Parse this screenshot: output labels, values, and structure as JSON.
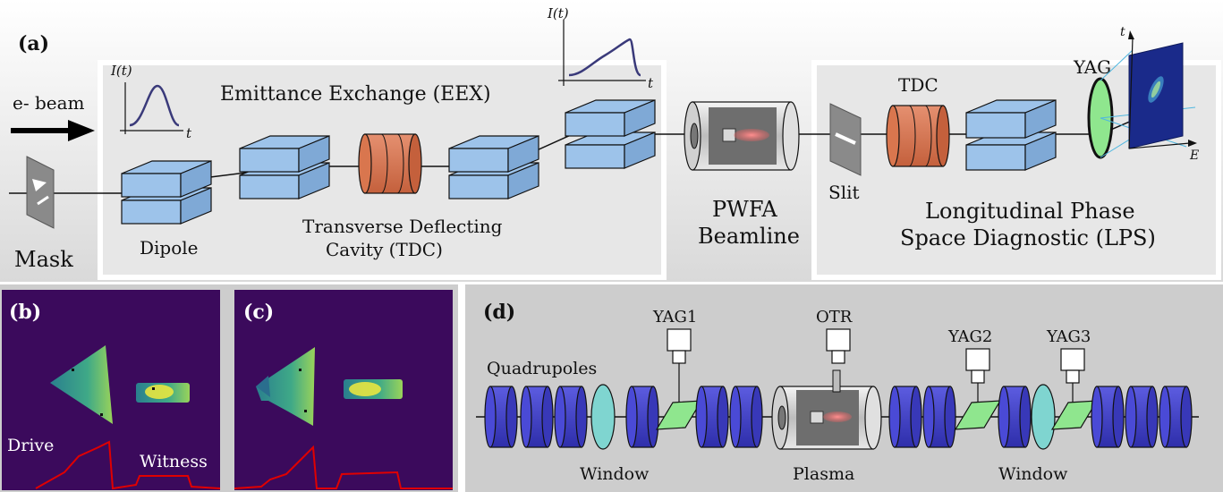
{
  "panel_a": {
    "label": "(a)",
    "ebeam": "e- beam",
    "mask": "Mask",
    "eex_title": "Emittance Exchange (EEX)",
    "dipole": "Dipole",
    "tdc_line1": "Transverse Deflecting",
    "tdc_line2": "Cavity (TDC)",
    "pwfa_line1": "PWFA",
    "pwfa_line2": "Beamline",
    "slit": "Slit",
    "tdc_short": "TDC",
    "yag": "YAG",
    "lps_line1": "Longitudinal Phase",
    "lps_line2": "Space Diagnostic (LPS)",
    "current_label": "I(t)",
    "time_label": "t",
    "screen_t": "t",
    "screen_e": "E"
  },
  "panel_b": {
    "label": "(b)",
    "drive": "Drive",
    "witness": "Witness"
  },
  "panel_c": {
    "label": "(c)"
  },
  "panel_d": {
    "label": "(d)",
    "quadrupoles": "Quadrupoles",
    "yag1": "YAG1",
    "otr": "OTR",
    "yag2": "YAG2",
    "yag3": "YAG3",
    "window1": "Window",
    "plasma": "Plasma",
    "window2": "Window"
  },
  "colors": {
    "magnet": "#9dc3ea",
    "cavity": "#d9764e",
    "quad": "#4343cc",
    "window": "#7fd5d0",
    "screen": "#8fe68e",
    "plasma": "#f07a7a",
    "camera_bg": "#3b0a5c",
    "profile": "#e00000"
  }
}
